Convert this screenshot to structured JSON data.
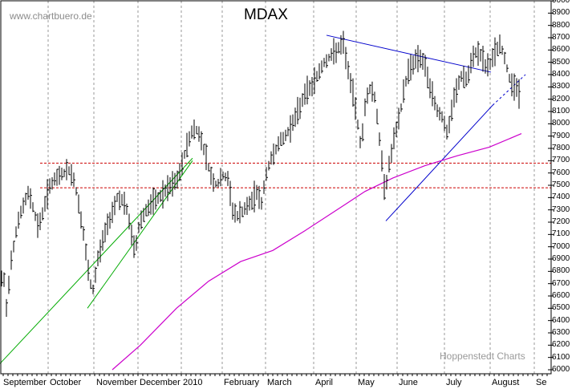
{
  "watermark": "www.chartbuero.de",
  "credit": "Hoppenstedt Charts",
  "chart_data": {
    "type": "bar",
    "style": "daily high-low bars",
    "title": "MDAX",
    "ylim": [
      6000,
      9000
    ],
    "y_ticks": [
      9000,
      8900,
      8800,
      8700,
      8600,
      8500,
      8400,
      8300,
      8200,
      8100,
      8000,
      7900,
      7800,
      7700,
      7600,
      7500,
      7400,
      7300,
      7200,
      7100,
      7000,
      6900,
      6800,
      6700,
      6600,
      6500,
      6400,
      6300,
      6200,
      6100,
      6000
    ],
    "x_ticks": [
      "September",
      "October",
      "November",
      "December",
      "2010",
      "February",
      "March",
      "April",
      "May",
      "June",
      "July",
      "August",
      "Se"
    ],
    "grid": "vertical dashed at month starts",
    "colors": {
      "price_bars": "#000000",
      "moving_average": "#cc00cc",
      "trend_lines_blue": "#0000cc",
      "trend_lines_green": "#00aa00",
      "support_lines": "#cc0000",
      "grid": "#999999"
    },
    "horizontal_lines": [
      7680,
      7480
    ],
    "series": [
      {
        "x": [
          "Sep 2009",
          "Sep 2009",
          "Sep 2009",
          "Sep 2009",
          "Oct 2009",
          "Oct 2009",
          "Oct 2009",
          "Oct 2009",
          "Nov 2009",
          "Nov 2009",
          "Nov 2009",
          "Nov 2009",
          "Dec 2009",
          "Dec 2009",
          "Dec 2009",
          "Jan 2010",
          "Jan 2010",
          "Jan 2010",
          "Jan 2010",
          "Feb 2010",
          "Feb 2010",
          "Feb 2010",
          "Mar 2010",
          "Mar 2010",
          "Mar 2010",
          "Mar 2010",
          "Apr 2010",
          "Apr 2010",
          "Apr 2010",
          "May 2010",
          "May 2010",
          "May 2010",
          "Jun 2010",
          "Jun 2010",
          "Jun 2010",
          "Jul 2010",
          "Jul 2010",
          "Jul 2010",
          "Jul 2010",
          "Aug 2010",
          "Aug 2010",
          "Aug 2010"
        ],
        "values": [
          6650,
          6950,
          7300,
          7450,
          7400,
          7600,
          7350,
          7000,
          6800,
          7150,
          7300,
          7350,
          7250,
          7400,
          7480,
          7700,
          7900,
          7850,
          7600,
          7400,
          7300,
          7550,
          7700,
          7900,
          8000,
          8200,
          8400,
          8600,
          8350,
          7750,
          7600,
          8100,
          8400,
          8450,
          8000,
          7850,
          8200,
          8350,
          8450,
          8600,
          8500,
          8250
        ]
      }
    ],
    "moving_average_series": {
      "x": [
        "Nov 2009",
        "Dec 2009",
        "Jan 2010",
        "Feb 2010",
        "Mar 2010",
        "Apr 2010",
        "May 2010",
        "Jun 2010",
        "Jul 2010",
        "Aug 2010"
      ],
      "values": [
        6000,
        6250,
        6600,
        6780,
        6980,
        7200,
        7480,
        7650,
        7760,
        7910
      ]
    }
  }
}
